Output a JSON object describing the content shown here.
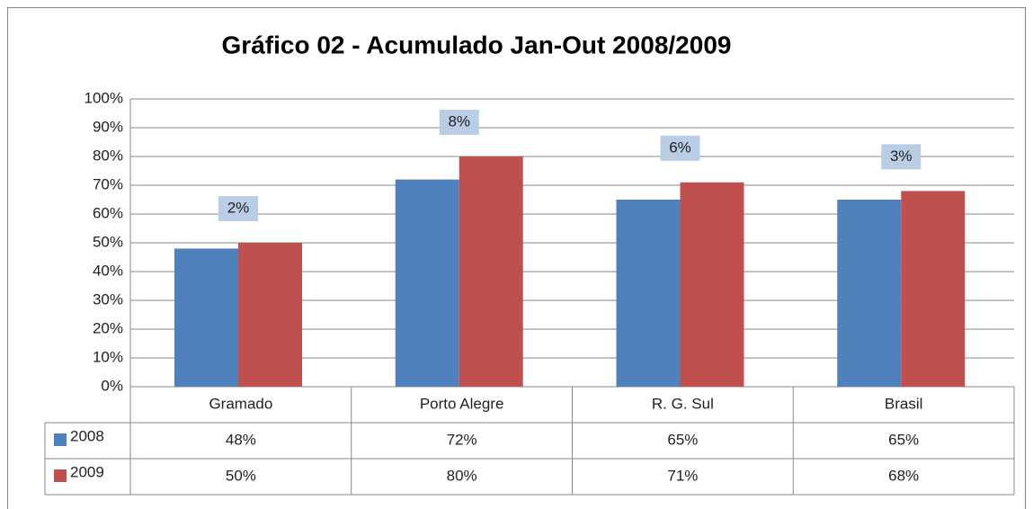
{
  "chart_data": {
    "type": "bar",
    "title": "Gráfico 02 - Acumulado Jan-Out 2008/2009",
    "categories": [
      "Gramado",
      "Porto Alegre",
      "R. G. Sul",
      "Brasil"
    ],
    "series": [
      {
        "name": "2008",
        "color": "#4f81bd",
        "values": [
          48,
          72,
          65,
          65
        ],
        "value_labels": [
          "48%",
          "72%",
          "65%",
          "65%"
        ]
      },
      {
        "name": "2009",
        "color": "#c0504d",
        "values": [
          50,
          80,
          71,
          68
        ],
        "value_labels": [
          "50%",
          "80%",
          "71%",
          "68%"
        ]
      }
    ],
    "annotations": [
      "2%",
      "8%",
      "6%",
      "3%"
    ],
    "ylim": [
      0,
      100
    ],
    "yticks": [
      {
        "value": 0,
        "label": "0%"
      },
      {
        "value": 10,
        "label": "10%"
      },
      {
        "value": 20,
        "label": "20%"
      },
      {
        "value": 30,
        "label": "30%"
      },
      {
        "value": 40,
        "label": "40%"
      },
      {
        "value": 50,
        "label": "50%"
      },
      {
        "value": 60,
        "label": "60%"
      },
      {
        "value": 70,
        "label": "70%"
      },
      {
        "value": 80,
        "label": "80%"
      },
      {
        "value": 90,
        "label": "90%"
      },
      {
        "value": 100,
        "label": "100%"
      }
    ],
    "grid": true
  }
}
